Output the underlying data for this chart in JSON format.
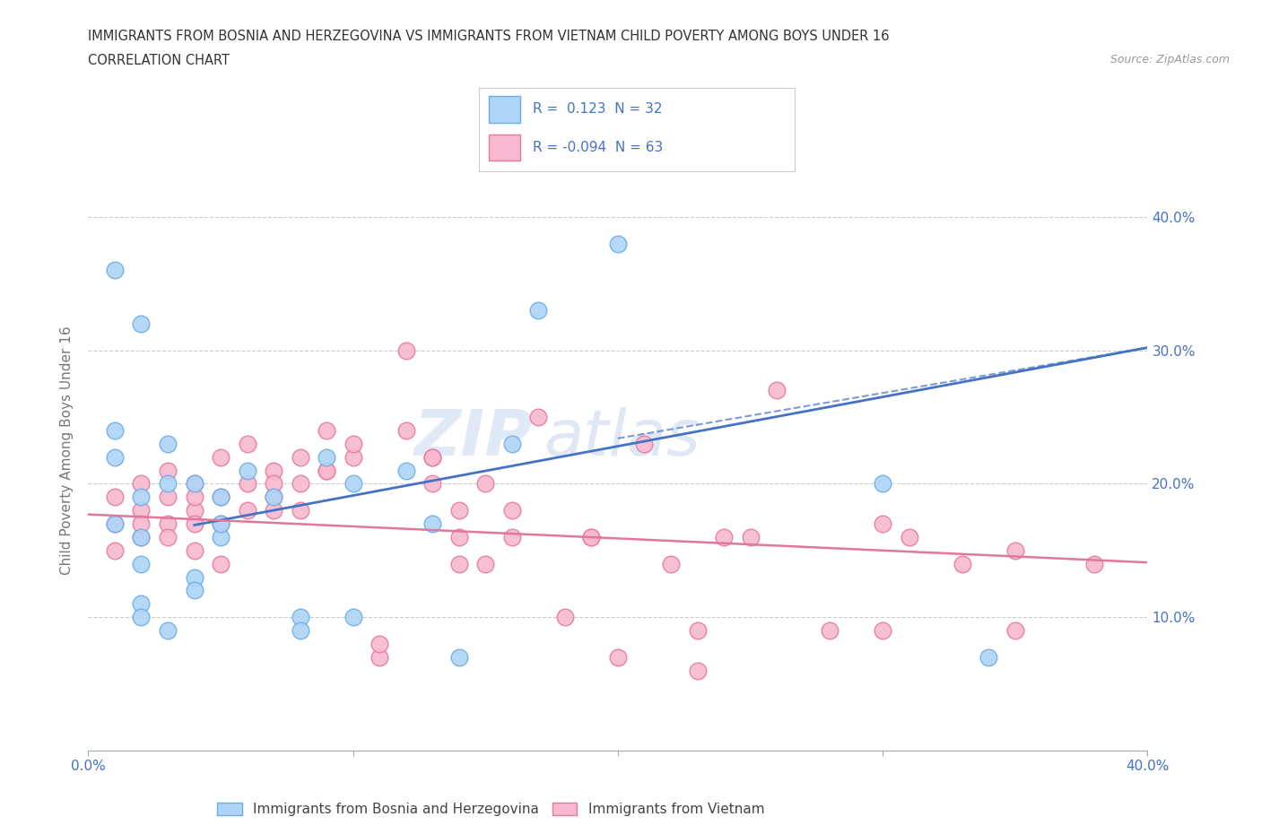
{
  "title_line1": "IMMIGRANTS FROM BOSNIA AND HERZEGOVINA VS IMMIGRANTS FROM VIETNAM CHILD POVERTY AMONG BOYS UNDER 16",
  "title_line2": "CORRELATION CHART",
  "source_text": "Source: ZipAtlas.com",
  "ylabel": "Child Poverty Among Boys Under 16",
  "xlim": [
    0.0,
    0.4
  ],
  "ylim": [
    0.0,
    0.45
  ],
  "x_ticks": [
    0.0,
    0.1,
    0.2,
    0.3,
    0.4
  ],
  "x_tick_labels": [
    "0.0%",
    "",
    "",
    "",
    "40.0%"
  ],
  "y_ticks": [
    0.0,
    0.1,
    0.2,
    0.3,
    0.4
  ],
  "y_tick_labels_right": [
    "",
    "10.0%",
    "20.0%",
    "30.0%",
    "40.0%"
  ],
  "bosnia_color": "#aed4f7",
  "vietnam_color": "#f7b8d0",
  "bosnia_edge_color": "#6aaee8",
  "vietnam_edge_color": "#e8789e",
  "bosnia_line_color": "#4472c4",
  "vietnam_line_color": "#e07898",
  "tick_color": "#4472c4",
  "bosnia_R": 0.123,
  "bosnia_N": 32,
  "vietnam_R": -0.094,
  "vietnam_N": 63,
  "watermark_text": "ZIP",
  "watermark_text2": "atlas",
  "background_color": "#ffffff",
  "grid_color": "#cccccc",
  "bosnia_line_x": [
    0.04,
    0.4
  ],
  "bosnia_line_y": [
    0.169,
    0.302
  ],
  "vietnam_line_x": [
    0.0,
    0.4
  ],
  "vietnam_line_y": [
    0.177,
    0.141
  ],
  "bosnia_x": [
    0.01,
    0.01,
    0.01,
    0.02,
    0.02,
    0.02,
    0.02,
    0.03,
    0.03,
    0.03,
    0.04,
    0.04,
    0.05,
    0.05,
    0.06,
    0.07,
    0.08,
    0.08,
    0.09,
    0.1,
    0.1,
    0.12,
    0.13,
    0.14,
    0.16,
    0.2,
    0.34
  ],
  "bosnia_y": [
    0.17,
    0.22,
    0.24,
    0.19,
    0.14,
    0.11,
    0.1,
    0.23,
    0.2,
    0.09,
    0.2,
    0.13,
    0.19,
    0.16,
    0.21,
    0.19,
    0.1,
    0.09,
    0.22,
    0.2,
    0.1,
    0.21,
    0.17,
    0.07,
    0.23,
    0.38,
    0.07
  ],
  "bosnia_x2": [
    0.01,
    0.02,
    0.02,
    0.04,
    0.05,
    0.17,
    0.3
  ],
  "bosnia_y2": [
    0.36,
    0.32,
    0.16,
    0.12,
    0.17,
    0.33,
    0.2
  ],
  "vietnam_x": [
    0.01,
    0.01,
    0.02,
    0.02,
    0.02,
    0.03,
    0.03,
    0.03,
    0.04,
    0.04,
    0.04,
    0.04,
    0.05,
    0.05,
    0.05,
    0.06,
    0.06,
    0.07,
    0.07,
    0.07,
    0.08,
    0.08,
    0.09,
    0.09,
    0.1,
    0.11,
    0.12,
    0.13,
    0.13,
    0.14,
    0.14,
    0.15,
    0.16,
    0.17,
    0.18,
    0.19,
    0.2,
    0.21,
    0.22,
    0.23,
    0.24,
    0.25,
    0.26,
    0.28,
    0.3,
    0.31,
    0.33,
    0.35,
    0.38
  ],
  "vietnam_y": [
    0.19,
    0.17,
    0.2,
    0.18,
    0.16,
    0.19,
    0.17,
    0.16,
    0.2,
    0.18,
    0.17,
    0.15,
    0.22,
    0.19,
    0.14,
    0.23,
    0.2,
    0.21,
    0.19,
    0.18,
    0.22,
    0.2,
    0.24,
    0.21,
    0.22,
    0.07,
    0.3,
    0.22,
    0.2,
    0.18,
    0.16,
    0.2,
    0.18,
    0.25,
    0.1,
    0.16,
    0.07,
    0.23,
    0.14,
    0.06,
    0.16,
    0.16,
    0.27,
    0.09,
    0.17,
    0.16,
    0.14,
    0.15,
    0.14
  ],
  "vietnam_x2": [
    0.01,
    0.02,
    0.03,
    0.04,
    0.05,
    0.06,
    0.07,
    0.08,
    0.09,
    0.1,
    0.11,
    0.12,
    0.13,
    0.14,
    0.15,
    0.16,
    0.19,
    0.23,
    0.3,
    0.35
  ],
  "vietnam_y2": [
    0.15,
    0.17,
    0.21,
    0.19,
    0.17,
    0.18,
    0.2,
    0.18,
    0.21,
    0.23,
    0.08,
    0.24,
    0.22,
    0.14,
    0.14,
    0.16,
    0.16,
    0.09,
    0.09,
    0.09
  ]
}
